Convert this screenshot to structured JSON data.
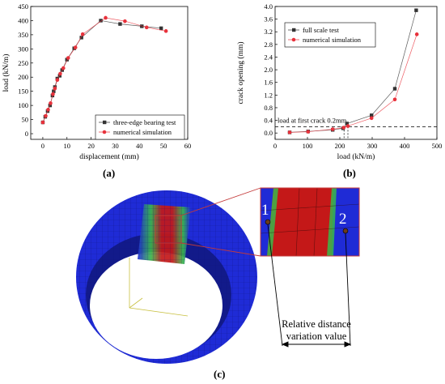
{
  "panels": {
    "a": "(a)",
    "b": "(b)",
    "c": "(c)"
  },
  "chart_data": [
    {
      "type": "line",
      "panel": "a",
      "xlabel": "displacement (mm)",
      "ylabel": "load (kN/m)",
      "xlim": [
        -5,
        60
      ],
      "ylim": [
        -20,
        450
      ],
      "x_ticks": [
        0,
        10,
        20,
        30,
        40,
        50,
        60
      ],
      "y_ticks": [
        0,
        50,
        100,
        150,
        200,
        250,
        300,
        350,
        400,
        450
      ],
      "legend_position": "bottom-right",
      "grid": false,
      "series": [
        {
          "name": "three-edge bearing test",
          "color": "#333333",
          "marker": "square",
          "points": [
            [
              0,
              40
            ],
            [
              1,
              60
            ],
            [
              2,
              80
            ],
            [
              3,
              100
            ],
            [
              4,
              135
            ],
            [
              4.5,
              150
            ],
            [
              5,
              165
            ],
            [
              6,
              195
            ],
            [
              7,
              205
            ],
            [
              8,
              225
            ],
            [
              10,
              262
            ],
            [
              13,
              302
            ],
            [
              16,
              340
            ],
            [
              24,
              400
            ],
            [
              32,
              388
            ],
            [
              41,
              380
            ],
            [
              49,
              373
            ]
          ]
        },
        {
          "name": "numerical simulation",
          "color": "#e8323c",
          "marker": "circle",
          "points": [
            [
              0,
              40
            ],
            [
              1.2,
              63
            ],
            [
              2.2,
              85
            ],
            [
              3.2,
              108
            ],
            [
              4.2,
              140
            ],
            [
              5,
              160
            ],
            [
              6,
              190
            ],
            [
              7.2,
              212
            ],
            [
              8.5,
              232
            ],
            [
              10.5,
              268
            ],
            [
              13.5,
              305
            ],
            [
              16.5,
              352
            ],
            [
              26,
              410
            ],
            [
              34,
              398
            ],
            [
              43,
              376
            ],
            [
              51,
              363
            ]
          ]
        }
      ]
    },
    {
      "type": "line",
      "panel": "b",
      "xlabel": "load (kN/m)",
      "ylabel": "crack opening (mm)",
      "xlim": [
        0,
        500
      ],
      "ylim": [
        -0.2,
        4.0
      ],
      "x_ticks": [
        0,
        100,
        200,
        300,
        400,
        500
      ],
      "y_ticks": [
        0.0,
        0.4,
        0.8,
        1.2,
        1.6,
        2.0,
        2.4,
        2.8,
        3.2,
        3.6,
        4.0
      ],
      "legend_position": "top-left",
      "grid": false,
      "threshold": {
        "y": 0.2,
        "label": "load at first crack 0.2mm",
        "vlines_x": [
          213,
          225
        ]
      },
      "series": [
        {
          "name": "full scale test",
          "color": "#333333",
          "marker": "square",
          "points": [
            [
              45,
              0.02
            ],
            [
              102,
              0.05
            ],
            [
              178,
              0.1
            ],
            [
              210,
              0.15
            ],
            [
              222,
              0.3
            ],
            [
              298,
              0.56
            ],
            [
              370,
              1.4
            ],
            [
              436,
              3.88
            ]
          ]
        },
        {
          "name": "numerical simulation",
          "color": "#e8323c",
          "marker": "circle",
          "points": [
            [
              45,
              0.02
            ],
            [
              102,
              0.04
            ],
            [
              178,
              0.12
            ],
            [
              212,
              0.17
            ],
            [
              225,
              0.22
            ],
            [
              298,
              0.47
            ],
            [
              370,
              1.06
            ],
            [
              438,
              3.12
            ]
          ]
        }
      ]
    }
  ],
  "figure_c": {
    "marker_1": "1",
    "marker_2": "2",
    "note_line1": "Relative distance",
    "note_line2": "variation value",
    "colors": {
      "blue": "#1f2bd6",
      "dark_blue": "#121a8a",
      "red": "#c41818",
      "green": "#38b84a",
      "callout": "#c43a3a"
    }
  }
}
